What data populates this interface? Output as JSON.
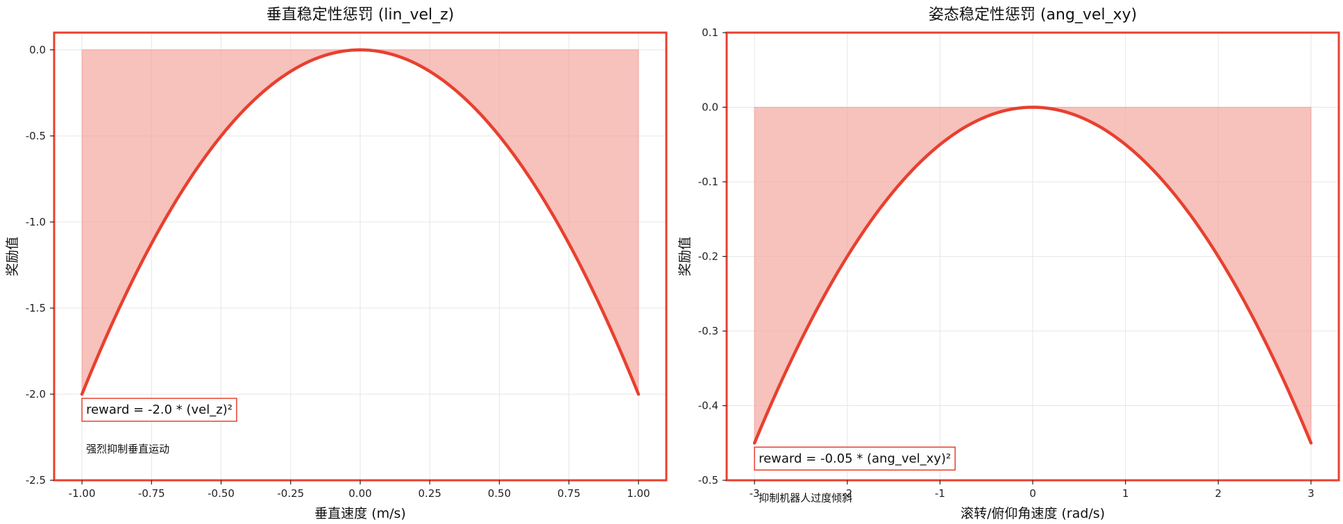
{
  "chart_data": [
    {
      "type": "area",
      "title": "垂直稳定性惩罚 (lin_vel_z)",
      "xlabel": "垂直速度 (m/s)",
      "ylabel": "奖励值",
      "xlim": [
        -1.1,
        1.1
      ],
      "ylim": [
        -2.5,
        0.1
      ],
      "xticks": [
        -1.0,
        -0.75,
        -0.5,
        -0.25,
        0.0,
        0.25,
        0.5,
        0.75,
        1.0
      ],
      "xtick_labels": [
        "-1.00",
        "-0.75",
        "-0.50",
        "-0.25",
        "0.00",
        "0.25",
        "0.50",
        "0.75",
        "1.00"
      ],
      "yticks": [
        0.0,
        -0.5,
        -1.0,
        -1.5,
        -2.0,
        -2.5
      ],
      "ytick_labels": [
        "0.0",
        "-0.5",
        "-1.0",
        "-1.5",
        "-2.0",
        "-2.5"
      ],
      "grid": true,
      "coefficient": -2.0,
      "x_range": [
        -1.0,
        1.0
      ],
      "series": [
        {
          "x": [
            -1.0,
            -0.75,
            -0.5,
            -0.25,
            0.0,
            0.25,
            0.5,
            0.75,
            1.0
          ],
          "values": [
            -2.0,
            -1.125,
            -0.5,
            -0.125,
            0.0,
            -0.125,
            -0.5,
            -1.125,
            -2.0
          ]
        }
      ],
      "fill_to": 0.0,
      "formula": "reward = -2.0 * (vel_z)²",
      "note": "强烈抑制垂直运动",
      "line_color": "#e8402f",
      "fill_color": "#f3a79f",
      "border_color": "#e8402f"
    },
    {
      "type": "area",
      "title": "姿态稳定性惩罚 (ang_vel_xy)",
      "xlabel": "滚转/俯仰角速度 (rad/s)",
      "ylabel": "奖励值",
      "xlim": [
        -3.3,
        3.3
      ],
      "ylim": [
        -0.5,
        0.1
      ],
      "xticks": [
        -3,
        -2,
        -1,
        0,
        1,
        2,
        3
      ],
      "xtick_labels": [
        "-3",
        "-2",
        "-1",
        "0",
        "1",
        "2",
        "3"
      ],
      "yticks": [
        0.1,
        0.0,
        -0.1,
        -0.2,
        -0.3,
        -0.4,
        -0.5
      ],
      "ytick_labels": [
        "0.1",
        "0.0",
        "-0.1",
        "-0.2",
        "-0.3",
        "-0.4",
        "-0.5"
      ],
      "grid": true,
      "coefficient": -0.05,
      "x_range": [
        -3.0,
        3.0
      ],
      "series": [
        {
          "x": [
            -3,
            -2,
            -1,
            0,
            1,
            2,
            3
          ],
          "values": [
            -0.45,
            -0.2,
            -0.05,
            0.0,
            -0.05,
            -0.2,
            -0.45
          ]
        }
      ],
      "fill_to": 0.0,
      "formula": "reward = -0.05 * (ang_vel_xy)²",
      "note": "抑制机器人过度倾斜",
      "line_color": "#e8402f",
      "fill_color": "#f3a79f",
      "border_color": "#e8402f"
    }
  ]
}
